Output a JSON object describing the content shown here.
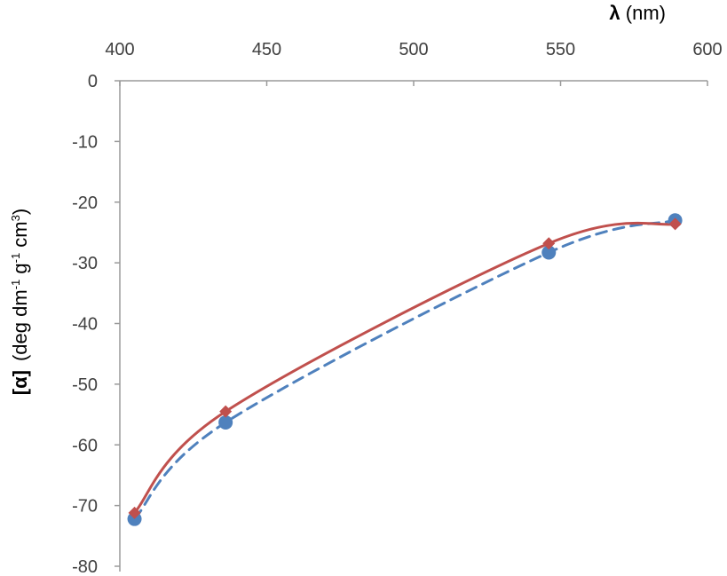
{
  "chart_data": {
    "type": "line",
    "xlabel": {
      "symbol": "λ",
      "text": " (nm)"
    },
    "ylabel": {
      "symbol": "[α]",
      "text": "(deg dm",
      "sup1": "-1",
      "mid": " g",
      "sup2": "-1",
      "mid2": " cm",
      "sup3": "3",
      "end": ")"
    },
    "x_axis_position": "top",
    "xlim": [
      400,
      600
    ],
    "ylim": [
      -80,
      0
    ],
    "x_ticks": [
      400,
      450,
      500,
      550,
      600
    ],
    "y_ticks": [
      0,
      -10,
      -20,
      -30,
      -40,
      -50,
      -60,
      -70,
      -80
    ],
    "x_tick_labels": [
      "400",
      "450",
      "500",
      "550",
      "600"
    ],
    "y_tick_labels": [
      "0",
      "-10",
      "-20",
      "-30",
      "-40",
      "-50",
      "-60",
      "-70",
      "-80"
    ],
    "grid": false,
    "series": [
      {
        "color": "#4f81bd",
        "line_style": "dashed",
        "marker": "circle",
        "x": [
          405,
          436,
          546,
          589
        ],
        "y": [
          -72.2,
          -56.3,
          -28.3,
          -23.0
        ]
      },
      {
        "color": "#c0504d",
        "line_style": "solid",
        "marker": "diamond",
        "x": [
          405,
          436,
          546,
          589
        ],
        "y": [
          -71.2,
          -54.5,
          -26.8,
          -23.6
        ]
      }
    ]
  }
}
